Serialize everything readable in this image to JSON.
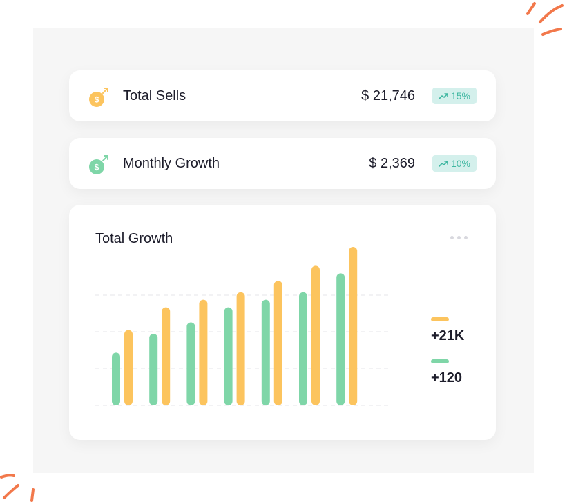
{
  "stats": [
    {
      "label": "Total Sells",
      "value": "$ 21,746",
      "change": "15%",
      "icon": "dollar-arrow-icon",
      "icon_color": "#fcc45e"
    },
    {
      "label": "Monthly Growth",
      "value": "$ 2,369",
      "change": "10%",
      "icon": "dollar-arrow-icon",
      "icon_color": "#7fd6a8"
    }
  ],
  "colors": {
    "accent_yellow": "#fcc45e",
    "accent_green": "#7fd6a8",
    "badge_bg": "#d4f0ec",
    "badge_text": "#3fb7a1",
    "decoration": "#f2784b"
  },
  "chart_data": {
    "type": "bar",
    "title": "Total Growth",
    "xlabel": "",
    "ylabel": "",
    "categories": [
      "",
      "",
      "",
      "",
      "",
      "",
      ""
    ],
    "series": [
      {
        "color": "#7fd6a8",
        "values": [
          14,
          19,
          22,
          26,
          28,
          30,
          35
        ]
      },
      {
        "color": "#fcc45e",
        "values": [
          20,
          26,
          28,
          30,
          33,
          37,
          42
        ]
      }
    ],
    "ylim": [
      0,
      42
    ],
    "grid": true,
    "legend": [
      {
        "label": "+21K",
        "color": "#fcc45e"
      },
      {
        "label": "+120",
        "color": "#7fd6a8"
      }
    ],
    "legend_position": "right"
  }
}
